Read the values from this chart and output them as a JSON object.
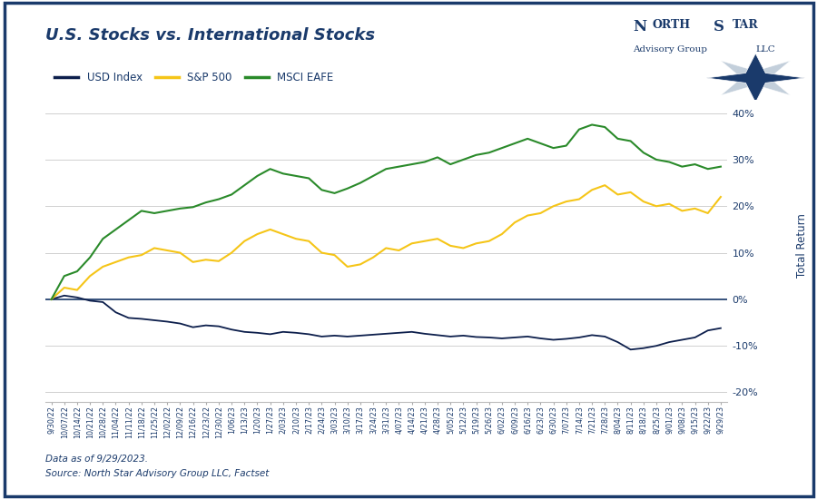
{
  "title": "U.S. Stocks vs. International Stocks",
  "ylabel": "Total Return",
  "footnote1": "Data as of 9/29/2023.",
  "footnote2": "Source: North Star Advisory Group LLC, Factset",
  "background_color": "#ffffff",
  "plot_bg_color": "#ffffff",
  "border_color": "#1a3a6b",
  "grid_color": "#d0d0d0",
  "legend_items": [
    "USD Index",
    "S&P 500",
    "MSCI EAFE"
  ],
  "legend_colors": [
    "#0d1f4c",
    "#f5c518",
    "#2a8a2a"
  ],
  "ylim": [
    -22,
    45
  ],
  "yticks": [
    -20,
    -10,
    0,
    10,
    20,
    30,
    40
  ],
  "x_labels": [
    "9/30/22",
    "10/07/22",
    "10/14/22",
    "10/21/22",
    "10/28/22",
    "11/04/22",
    "11/11/22",
    "11/18/22",
    "11/25/22",
    "12/02/22",
    "12/09/22",
    "12/16/22",
    "12/23/22",
    "12/30/22",
    "1/06/23",
    "1/13/23",
    "1/20/23",
    "1/27/23",
    "2/03/23",
    "2/10/23",
    "2/17/23",
    "2/24/23",
    "3/03/23",
    "3/10/23",
    "3/17/23",
    "3/24/23",
    "3/31/23",
    "4/07/23",
    "4/14/23",
    "4/21/23",
    "4/28/23",
    "5/05/23",
    "5/12/23",
    "5/19/23",
    "5/26/23",
    "6/02/23",
    "6/09/23",
    "6/16/23",
    "6/23/23",
    "6/30/23",
    "7/07/23",
    "7/14/23",
    "7/21/23",
    "7/28/23",
    "8/04/23",
    "8/11/23",
    "8/18/23",
    "8/25/23",
    "9/01/23",
    "9/08/23",
    "9/15/23",
    "9/22/23",
    "9/29/23"
  ],
  "usd_index": [
    0.0,
    0.8,
    0.4,
    -0.3,
    -0.6,
    -2.8,
    -4.0,
    -4.2,
    -4.5,
    -4.8,
    -5.2,
    -6.0,
    -5.6,
    -5.8,
    -6.5,
    -7.0,
    -7.2,
    -7.5,
    -7.0,
    -7.2,
    -7.5,
    -8.0,
    -7.8,
    -8.0,
    -7.8,
    -7.6,
    -7.4,
    -7.2,
    -7.0,
    -7.4,
    -7.7,
    -8.0,
    -7.8,
    -8.1,
    -8.2,
    -8.4,
    -8.2,
    -8.0,
    -8.4,
    -8.7,
    -8.5,
    -8.2,
    -7.7,
    -8.0,
    -9.2,
    -10.8,
    -10.5,
    -10.0,
    -9.2,
    -8.7,
    -8.2,
    -6.7,
    -6.2
  ],
  "sp500": [
    0.0,
    2.5,
    2.0,
    5.0,
    7.0,
    8.0,
    9.0,
    9.5,
    11.0,
    10.5,
    10.0,
    8.0,
    8.5,
    8.2,
    10.0,
    12.5,
    14.0,
    15.0,
    14.0,
    13.0,
    12.5,
    10.0,
    9.5,
    7.0,
    7.5,
    9.0,
    11.0,
    10.5,
    12.0,
    12.5,
    13.0,
    11.5,
    11.0,
    12.0,
    12.5,
    14.0,
    16.5,
    18.0,
    18.5,
    20.0,
    21.0,
    21.5,
    23.5,
    24.5,
    22.5,
    23.0,
    21.0,
    20.0,
    20.5,
    19.0,
    19.5,
    18.5,
    22.0
  ],
  "msci_eafe": [
    0.0,
    5.0,
    6.0,
    9.0,
    13.0,
    15.0,
    17.0,
    19.0,
    18.5,
    19.0,
    19.5,
    19.8,
    20.8,
    21.5,
    22.5,
    24.5,
    26.5,
    28.0,
    27.0,
    26.5,
    26.0,
    23.5,
    22.8,
    23.8,
    25.0,
    26.5,
    28.0,
    28.5,
    29.0,
    29.5,
    30.5,
    29.0,
    30.0,
    31.0,
    31.5,
    32.5,
    33.5,
    34.5,
    33.5,
    32.5,
    33.0,
    36.5,
    37.5,
    37.0,
    34.5,
    34.0,
    31.5,
    30.0,
    29.5,
    28.5,
    29.0,
    28.0,
    28.5
  ]
}
